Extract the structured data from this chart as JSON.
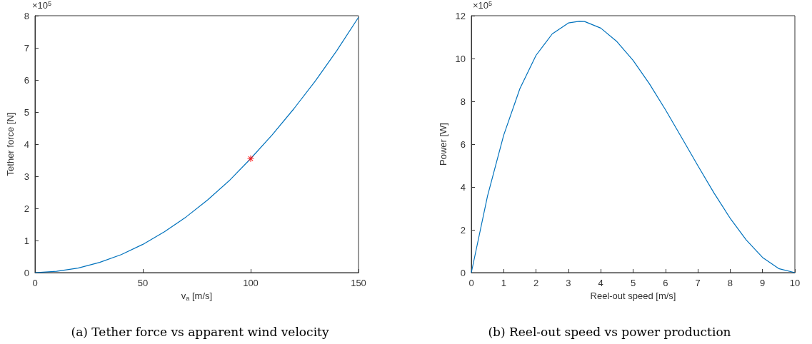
{
  "chart_data": [
    {
      "type": "line",
      "title": "(a) Tether force vs apparent wind velocity",
      "xlabel": "v$_{a}$ [m/s]",
      "ylabel": "Tether force [N]",
      "annotations": [
        "×10$^{5}$"
      ],
      "xlim": [
        0,
        150
      ],
      "xticks": [
        0,
        50,
        100,
        150
      ],
      "ylim": [
        0,
        8
      ],
      "yticks": [
        0,
        1,
        2,
        3,
        4,
        5,
        6,
        7,
        8
      ],
      "series": [
        {
          "color": "#0072bd",
          "marker": "none",
          "x": [
            0,
            10,
            20,
            30,
            40,
            50,
            60,
            70,
            80,
            90,
            100,
            110,
            120,
            130,
            140,
            150
          ],
          "values": [
            0,
            0.04,
            0.14,
            0.32,
            0.56,
            0.88,
            1.27,
            1.73,
            2.26,
            2.86,
            3.55,
            4.29,
            5.1,
            5.97,
            6.92,
            7.95
          ]
        },
        {
          "type": "scatter",
          "color": "#ff0000",
          "marker": "cross",
          "x": [
            100
          ],
          "values": [
            3.55
          ]
        }
      ]
    },
    {
      "type": "line",
      "title": "(b) Reel-out speed vs power production",
      "xlabel": "Reel-out speed [m/s]",
      "ylabel": "Power [W]",
      "annotations": [
        "×10$^{5}$"
      ],
      "xlim": [
        0,
        10
      ],
      "xticks": [
        0,
        1,
        2,
        3,
        4,
        5,
        6,
        7,
        8,
        9,
        10
      ],
      "ylim": [
        0,
        12
      ],
      "yticks": [
        0,
        2,
        4,
        6,
        8,
        10,
        12
      ],
      "series": [
        {
          "color": "#0072bd",
          "marker": "none",
          "x": [
            0,
            0.5,
            1,
            1.5,
            2,
            2.5,
            3,
            3.33,
            3.5,
            4,
            4.5,
            5,
            5.5,
            6,
            6.5,
            7,
            7.5,
            8,
            8.5,
            9,
            9.5,
            10
          ],
          "values": [
            0,
            3.58,
            6.42,
            8.59,
            10.15,
            11.15,
            11.66,
            11.74,
            11.73,
            11.42,
            10.79,
            9.91,
            8.83,
            7.61,
            6.31,
            5.0,
            3.72,
            2.54,
            1.52,
            0.71,
            0.19,
            0
          ]
        }
      ]
    }
  ]
}
